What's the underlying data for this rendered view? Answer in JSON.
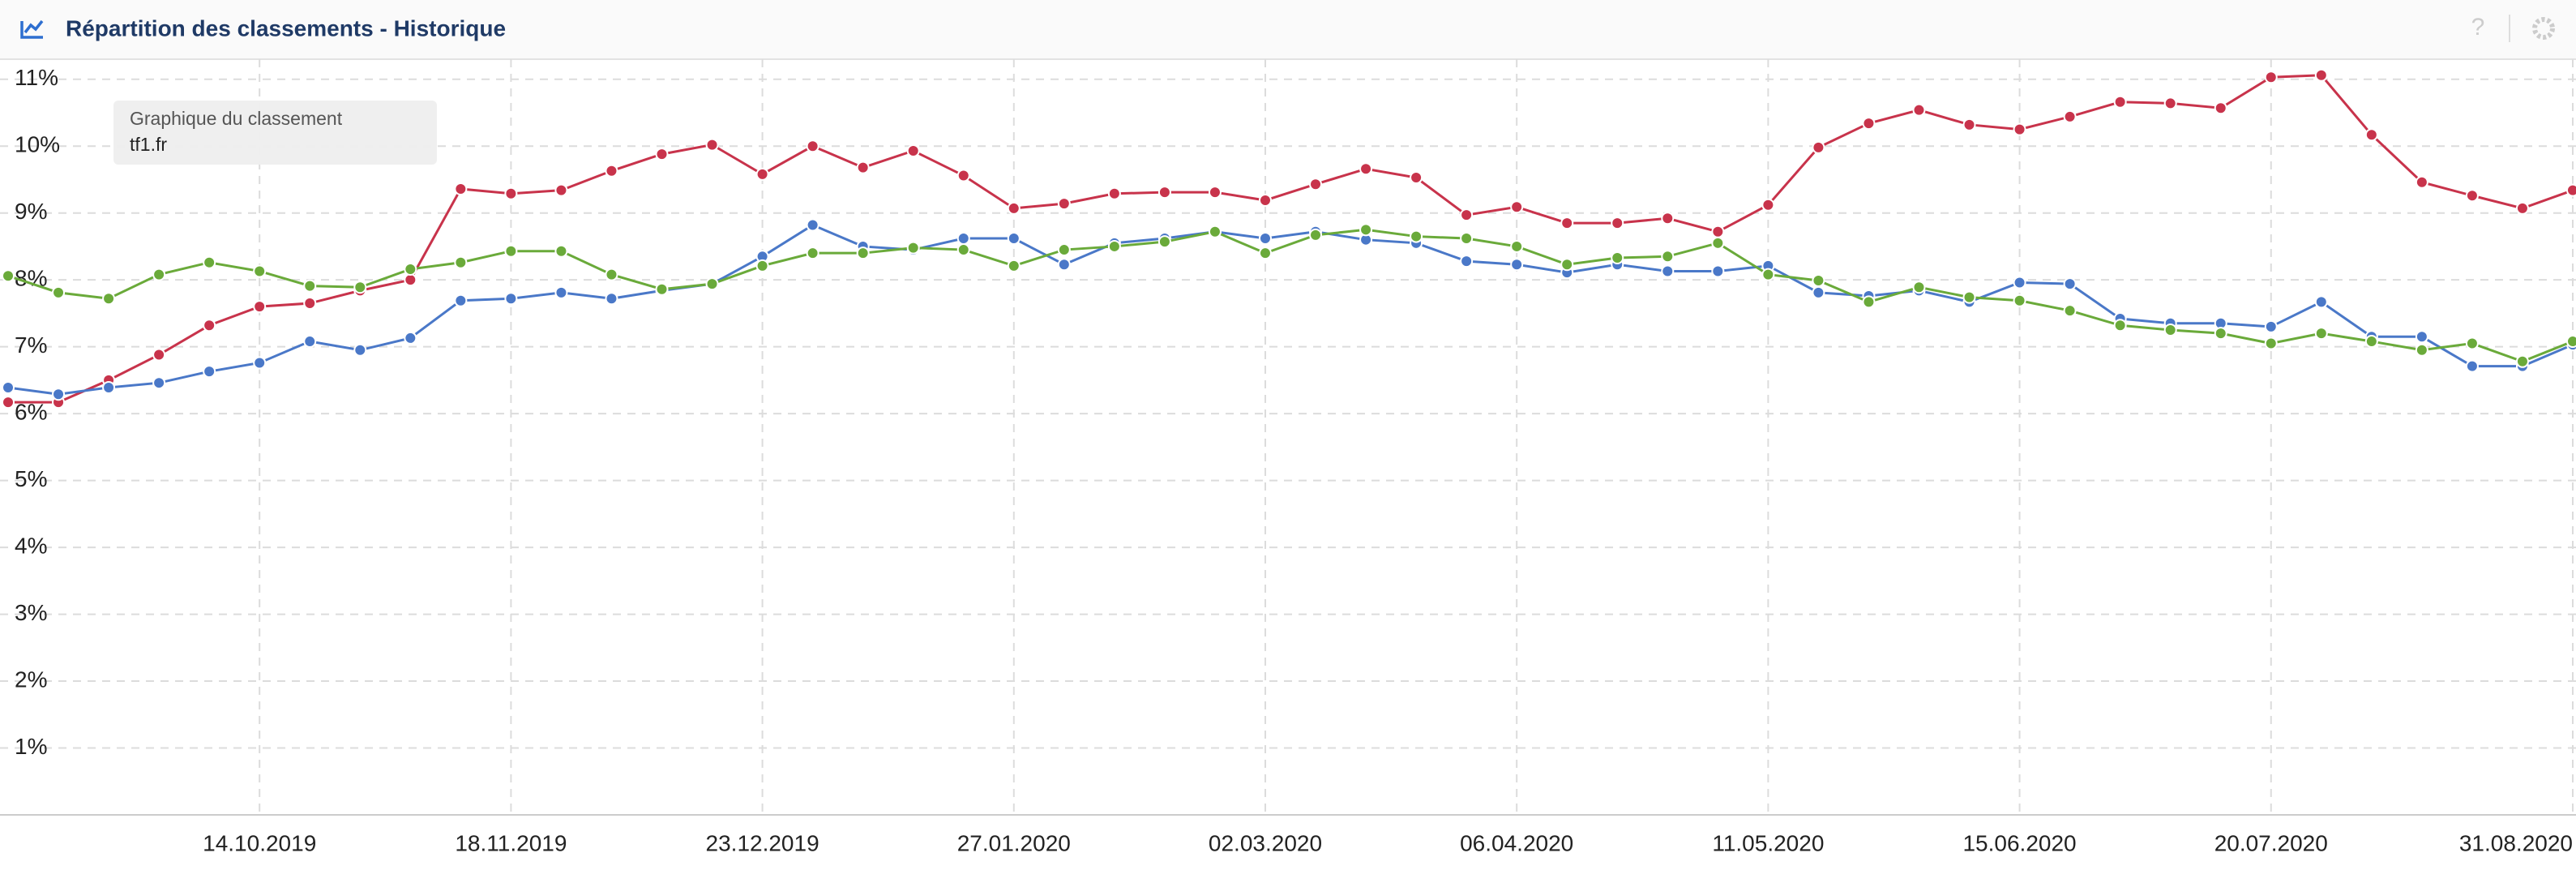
{
  "header": {
    "title": "Répartition des classements - Historique"
  },
  "tooltip": {
    "title": "Graphique du classement",
    "domain": "tf1.fr"
  },
  "chart_data": {
    "type": "line",
    "categories": [
      null,
      null,
      null,
      null,
      null,
      "14.10.2019",
      null,
      null,
      null,
      null,
      "18.11.2019",
      null,
      null,
      null,
      null,
      "23.12.2019",
      null,
      null,
      null,
      null,
      "27.01.2020",
      null,
      null,
      null,
      null,
      "02.03.2020",
      null,
      null,
      null,
      null,
      "06.04.2020",
      null,
      null,
      null,
      null,
      "11.05.2020",
      null,
      null,
      null,
      null,
      "15.06.2020",
      null,
      null,
      null,
      null,
      "20.07.2020",
      null,
      null,
      null,
      null,
      null,
      "31.08.2020"
    ],
    "ylim": [
      0,
      11.3
    ],
    "yticks": [
      {
        "value": 1,
        "label": "1%"
      },
      {
        "value": 2,
        "label": "2%"
      },
      {
        "value": 3,
        "label": "3%"
      },
      {
        "value": 4,
        "label": "4%"
      },
      {
        "value": 5,
        "label": "5%"
      },
      {
        "value": 6,
        "label": "6%"
      },
      {
        "value": 7,
        "label": "7%"
      },
      {
        "value": 8,
        "label": "8%"
      },
      {
        "value": 9,
        "label": "9%"
      },
      {
        "value": 10,
        "label": "10%"
      },
      {
        "value": 11,
        "label": "11%"
      }
    ],
    "grid": true,
    "series": [
      {
        "color": "#c8334b",
        "values": [
          6.17,
          6.17,
          6.5,
          6.88,
          7.32,
          7.6,
          7.65,
          7.84,
          8.0,
          9.36,
          9.29,
          9.34,
          9.63,
          9.88,
          10.02,
          9.58,
          10.0,
          9.68,
          9.93,
          9.56,
          9.07,
          9.14,
          9.29,
          9.31,
          9.31,
          9.19,
          9.43,
          9.66,
          9.53,
          8.97,
          9.09,
          8.85,
          8.85,
          8.92,
          8.72,
          9.12,
          9.98,
          10.34,
          10.54,
          10.32,
          10.25,
          10.44,
          10.66,
          10.64,
          10.57,
          11.03,
          11.06,
          10.17,
          9.46,
          9.26,
          9.07,
          9.34
        ]
      },
      {
        "color": "#4a78c8",
        "values": [
          6.39,
          6.29,
          6.39,
          6.46,
          6.63,
          6.76,
          7.08,
          6.95,
          7.13,
          7.69,
          7.72,
          7.81,
          7.72,
          7.84,
          7.94,
          8.35,
          8.82,
          8.5,
          8.45,
          8.62,
          8.62,
          8.23,
          8.55,
          8.62,
          8.72,
          8.62,
          8.72,
          8.6,
          8.55,
          8.28,
          8.23,
          8.11,
          8.23,
          8.13,
          8.13,
          8.21,
          7.81,
          7.76,
          7.84,
          7.67,
          7.96,
          7.94,
          7.42,
          7.35,
          7.35,
          7.3,
          7.67,
          7.15,
          7.15,
          6.71,
          6.71,
          7.03
        ]
      },
      {
        "color": "#6aaa3a",
        "values": [
          8.06,
          7.81,
          7.72,
          8.08,
          8.26,
          8.13,
          7.91,
          7.89,
          8.16,
          8.26,
          8.43,
          8.43,
          8.08,
          7.86,
          7.94,
          8.21,
          8.4,
          8.4,
          8.48,
          8.45,
          8.21,
          8.45,
          8.5,
          8.57,
          8.72,
          8.4,
          8.67,
          8.75,
          8.65,
          8.62,
          8.5,
          8.23,
          8.33,
          8.35,
          8.55,
          8.08,
          7.99,
          7.67,
          7.89,
          7.74,
          7.69,
          7.54,
          7.32,
          7.25,
          7.2,
          7.05,
          7.2,
          7.08,
          6.95,
          7.05,
          6.78,
          7.08
        ]
      }
    ]
  }
}
